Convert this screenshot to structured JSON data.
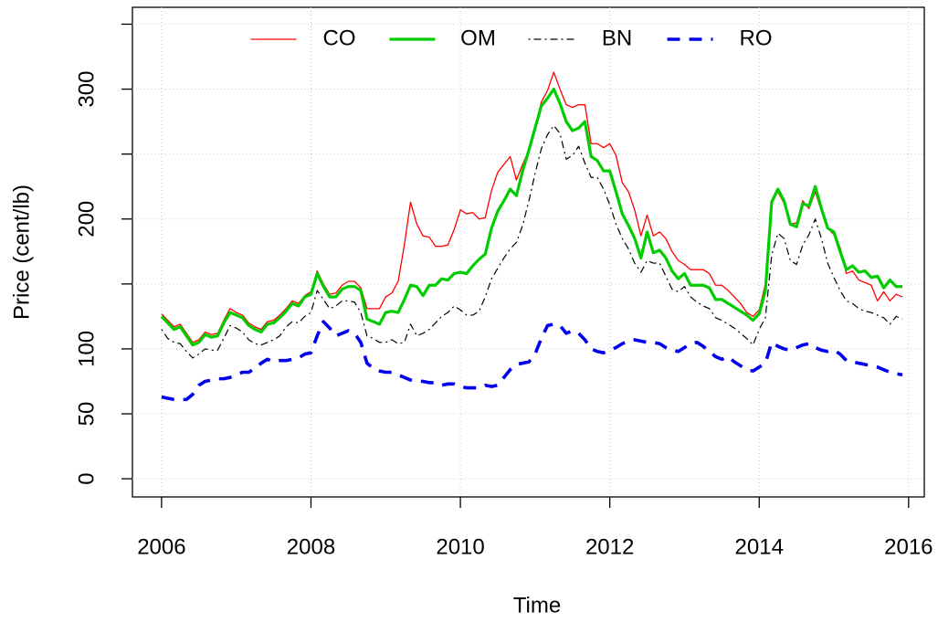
{
  "chart_data": {
    "type": "line",
    "xlabel": "Time",
    "ylabel": "Price (cent/lb)",
    "xlim": [
      2005.61,
      2016.21
    ],
    "ylim": [
      -14,
      363
    ],
    "xticks": [
      2006,
      2008,
      2010,
      2012,
      2014,
      2016
    ],
    "yticks": [
      0,
      50,
      100,
      {
        "value": 150,
        "label": null
      },
      200,
      {
        "value": 250,
        "label": null
      },
      300,
      {
        "value": 350,
        "label": null
      }
    ],
    "grid": true,
    "legend": "top",
    "x": [
      2006,
      2006.083,
      2006.167,
      2006.25,
      2006.333,
      2006.417,
      2006.5,
      2006.583,
      2006.667,
      2006.75,
      2006.833,
      2006.917,
      2007,
      2007.083,
      2007.167,
      2007.25,
      2007.333,
      2007.417,
      2007.5,
      2007.583,
      2007.667,
      2007.75,
      2007.833,
      2007.917,
      2008,
      2008.083,
      2008.167,
      2008.25,
      2008.333,
      2008.417,
      2008.5,
      2008.583,
      2008.667,
      2008.75,
      2008.833,
      2008.917,
      2009,
      2009.083,
      2009.167,
      2009.25,
      2009.333,
      2009.417,
      2009.5,
      2009.583,
      2009.667,
      2009.75,
      2009.833,
      2009.917,
      2010,
      2010.083,
      2010.167,
      2010.25,
      2010.333,
      2010.417,
      2010.5,
      2010.583,
      2010.667,
      2010.75,
      2010.833,
      2010.917,
      2011,
      2011.083,
      2011.167,
      2011.25,
      2011.333,
      2011.417,
      2011.5,
      2011.583,
      2011.667,
      2011.75,
      2011.833,
      2011.917,
      2012,
      2012.083,
      2012.167,
      2012.25,
      2012.333,
      2012.417,
      2012.5,
      2012.583,
      2012.667,
      2012.75,
      2012.833,
      2012.917,
      2013,
      2013.083,
      2013.167,
      2013.25,
      2013.333,
      2013.417,
      2013.5,
      2013.583,
      2013.667,
      2013.75,
      2013.833,
      2013.917,
      2014,
      2014.083,
      2014.167,
      2014.25,
      2014.333,
      2014.417,
      2014.5,
      2014.583,
      2014.667,
      2014.75,
      2014.833,
      2014.917,
      2015,
      2015.083,
      2015.167,
      2015.25,
      2015.333,
      2015.417,
      2015.5,
      2015.583,
      2015.667,
      2015.75,
      2015.833,
      2015.917
    ],
    "series": [
      {
        "name": "CO",
        "color": "#ff0000",
        "line_width": 1.3,
        "line_style": "solid",
        "values": [
          127,
          122,
          117,
          119,
          112,
          105,
          107,
          113,
          111,
          112,
          122,
          131,
          128,
          126,
          120,
          117,
          115,
          121,
          122,
          126,
          131,
          137,
          135,
          141,
          144,
          160,
          150,
          142,
          143,
          149,
          152,
          152,
          147,
          131,
          131,
          131,
          140,
          143,
          152,
          180,
          213,
          196,
          187,
          186,
          179,
          179,
          180,
          192,
          207,
          204,
          205,
          200,
          201,
          222,
          236,
          242,
          248,
          230,
          242,
          253,
          270,
          290,
          299,
          313,
          300,
          288,
          286,
          288,
          288,
          258,
          258,
          255,
          258,
          249,
          228,
          221,
          207,
          187,
          203,
          187,
          190,
          185,
          175,
          168,
          165,
          161,
          161,
          161,
          158,
          149,
          149,
          145,
          140,
          135,
          128,
          125,
          130,
          150,
          214,
          221,
          212,
          196,
          197,
          214,
          208,
          221,
          206,
          193,
          188,
          178,
          158,
          160,
          153,
          151,
          149,
          137,
          144,
          137,
          142,
          140
        ]
      },
      {
        "name": "OM",
        "color": "#00cc00",
        "line_width": 3.2,
        "line_style": "solid",
        "values": [
          125,
          120,
          115,
          117,
          110,
          103,
          105,
          111,
          109,
          110,
          120,
          128,
          126,
          124,
          118,
          115,
          113,
          119,
          120,
          124,
          129,
          135,
          133,
          140,
          142,
          158,
          148,
          140,
          140,
          146,
          148,
          148,
          145,
          123,
          121,
          119,
          128,
          129,
          128,
          138,
          149,
          148,
          141,
          149,
          149,
          154,
          153,
          158,
          159,
          158,
          164,
          169,
          173,
          193,
          206,
          214,
          223,
          218,
          237,
          253,
          270,
          287,
          293,
          300,
          289,
          275,
          268,
          270,
          275,
          248,
          245,
          237,
          237,
          221,
          204,
          195,
          185,
          170,
          190,
          174,
          176,
          170,
          160,
          154,
          158,
          149,
          149,
          149,
          147,
          138,
          138,
          135,
          132,
          129,
          126,
          122,
          127,
          145,
          213,
          223,
          214,
          196,
          194,
          212,
          210,
          225,
          208,
          193,
          190,
          175,
          161,
          164,
          159,
          160,
          155,
          156,
          147,
          153,
          148,
          148
        ]
      },
      {
        "name": "BN",
        "color": "#000000",
        "line_width": 1.2,
        "line_style": "dotdash",
        "values": [
          115,
          108,
          105,
          104,
          98,
          93,
          96,
          100,
          99,
          99,
          108,
          118,
          116,
          113,
          107,
          104,
          103,
          105,
          107,
          110,
          117,
          121,
          120,
          125,
          128,
          145,
          138,
          131,
          133,
          137,
          137,
          136,
          128,
          110,
          108,
          105,
          105,
          107,
          104,
          105,
          119,
          110,
          112,
          115,
          120,
          125,
          128,
          133,
          130,
          126,
          126,
          129,
          140,
          154,
          162,
          170,
          177,
          182,
          195,
          214,
          235,
          254,
          265,
          272,
          266,
          246,
          249,
          256,
          243,
          232,
          232,
          223,
          211,
          196,
          185,
          177,
          166,
          159,
          168,
          166,
          166,
          156,
          146,
          144,
          148,
          140,
          136,
          133,
          131,
          124,
          122,
          119,
          116,
          112,
          108,
          103,
          115,
          124,
          172,
          189,
          185,
          168,
          165,
          180,
          188,
          200,
          185,
          166,
          155,
          145,
          137,
          135,
          131,
          129,
          128,
          126,
          124,
          119,
          125,
          123
        ]
      },
      {
        "name": "RO",
        "color": "#0000ee",
        "line_width": 3.6,
        "line_style": "dashed",
        "values": [
          63,
          62,
          61,
          61,
          61,
          65,
          72,
          75,
          76,
          77,
          77,
          78,
          80,
          82,
          82,
          85,
          89,
          92,
          90,
          91,
          91,
          92,
          93,
          96,
          97,
          110,
          121,
          116,
          110,
          112,
          114,
          112,
          105,
          89,
          85,
          83,
          82,
          82,
          80,
          78,
          76,
          75,
          75,
          74,
          74,
          72,
          73,
          73,
          71,
          70,
          70,
          70,
          72,
          71,
          72,
          78,
          84,
          88,
          89,
          90,
          96,
          108,
          118,
          119,
          118,
          112,
          114,
          112,
          107,
          100,
          98,
          97,
          99,
          101,
          104,
          106,
          107,
          106,
          105,
          105,
          104,
          101,
          99,
          98,
          101,
          104,
          105,
          102,
          98,
          94,
          92,
          94,
          90,
          87,
          84,
          83,
          86,
          89,
          105,
          102,
          100,
          99,
          101,
          103,
          104,
          101,
          99,
          98,
          99,
          96,
          91,
          90,
          89,
          88,
          87,
          86,
          84,
          82,
          81,
          80
        ]
      }
    ]
  }
}
